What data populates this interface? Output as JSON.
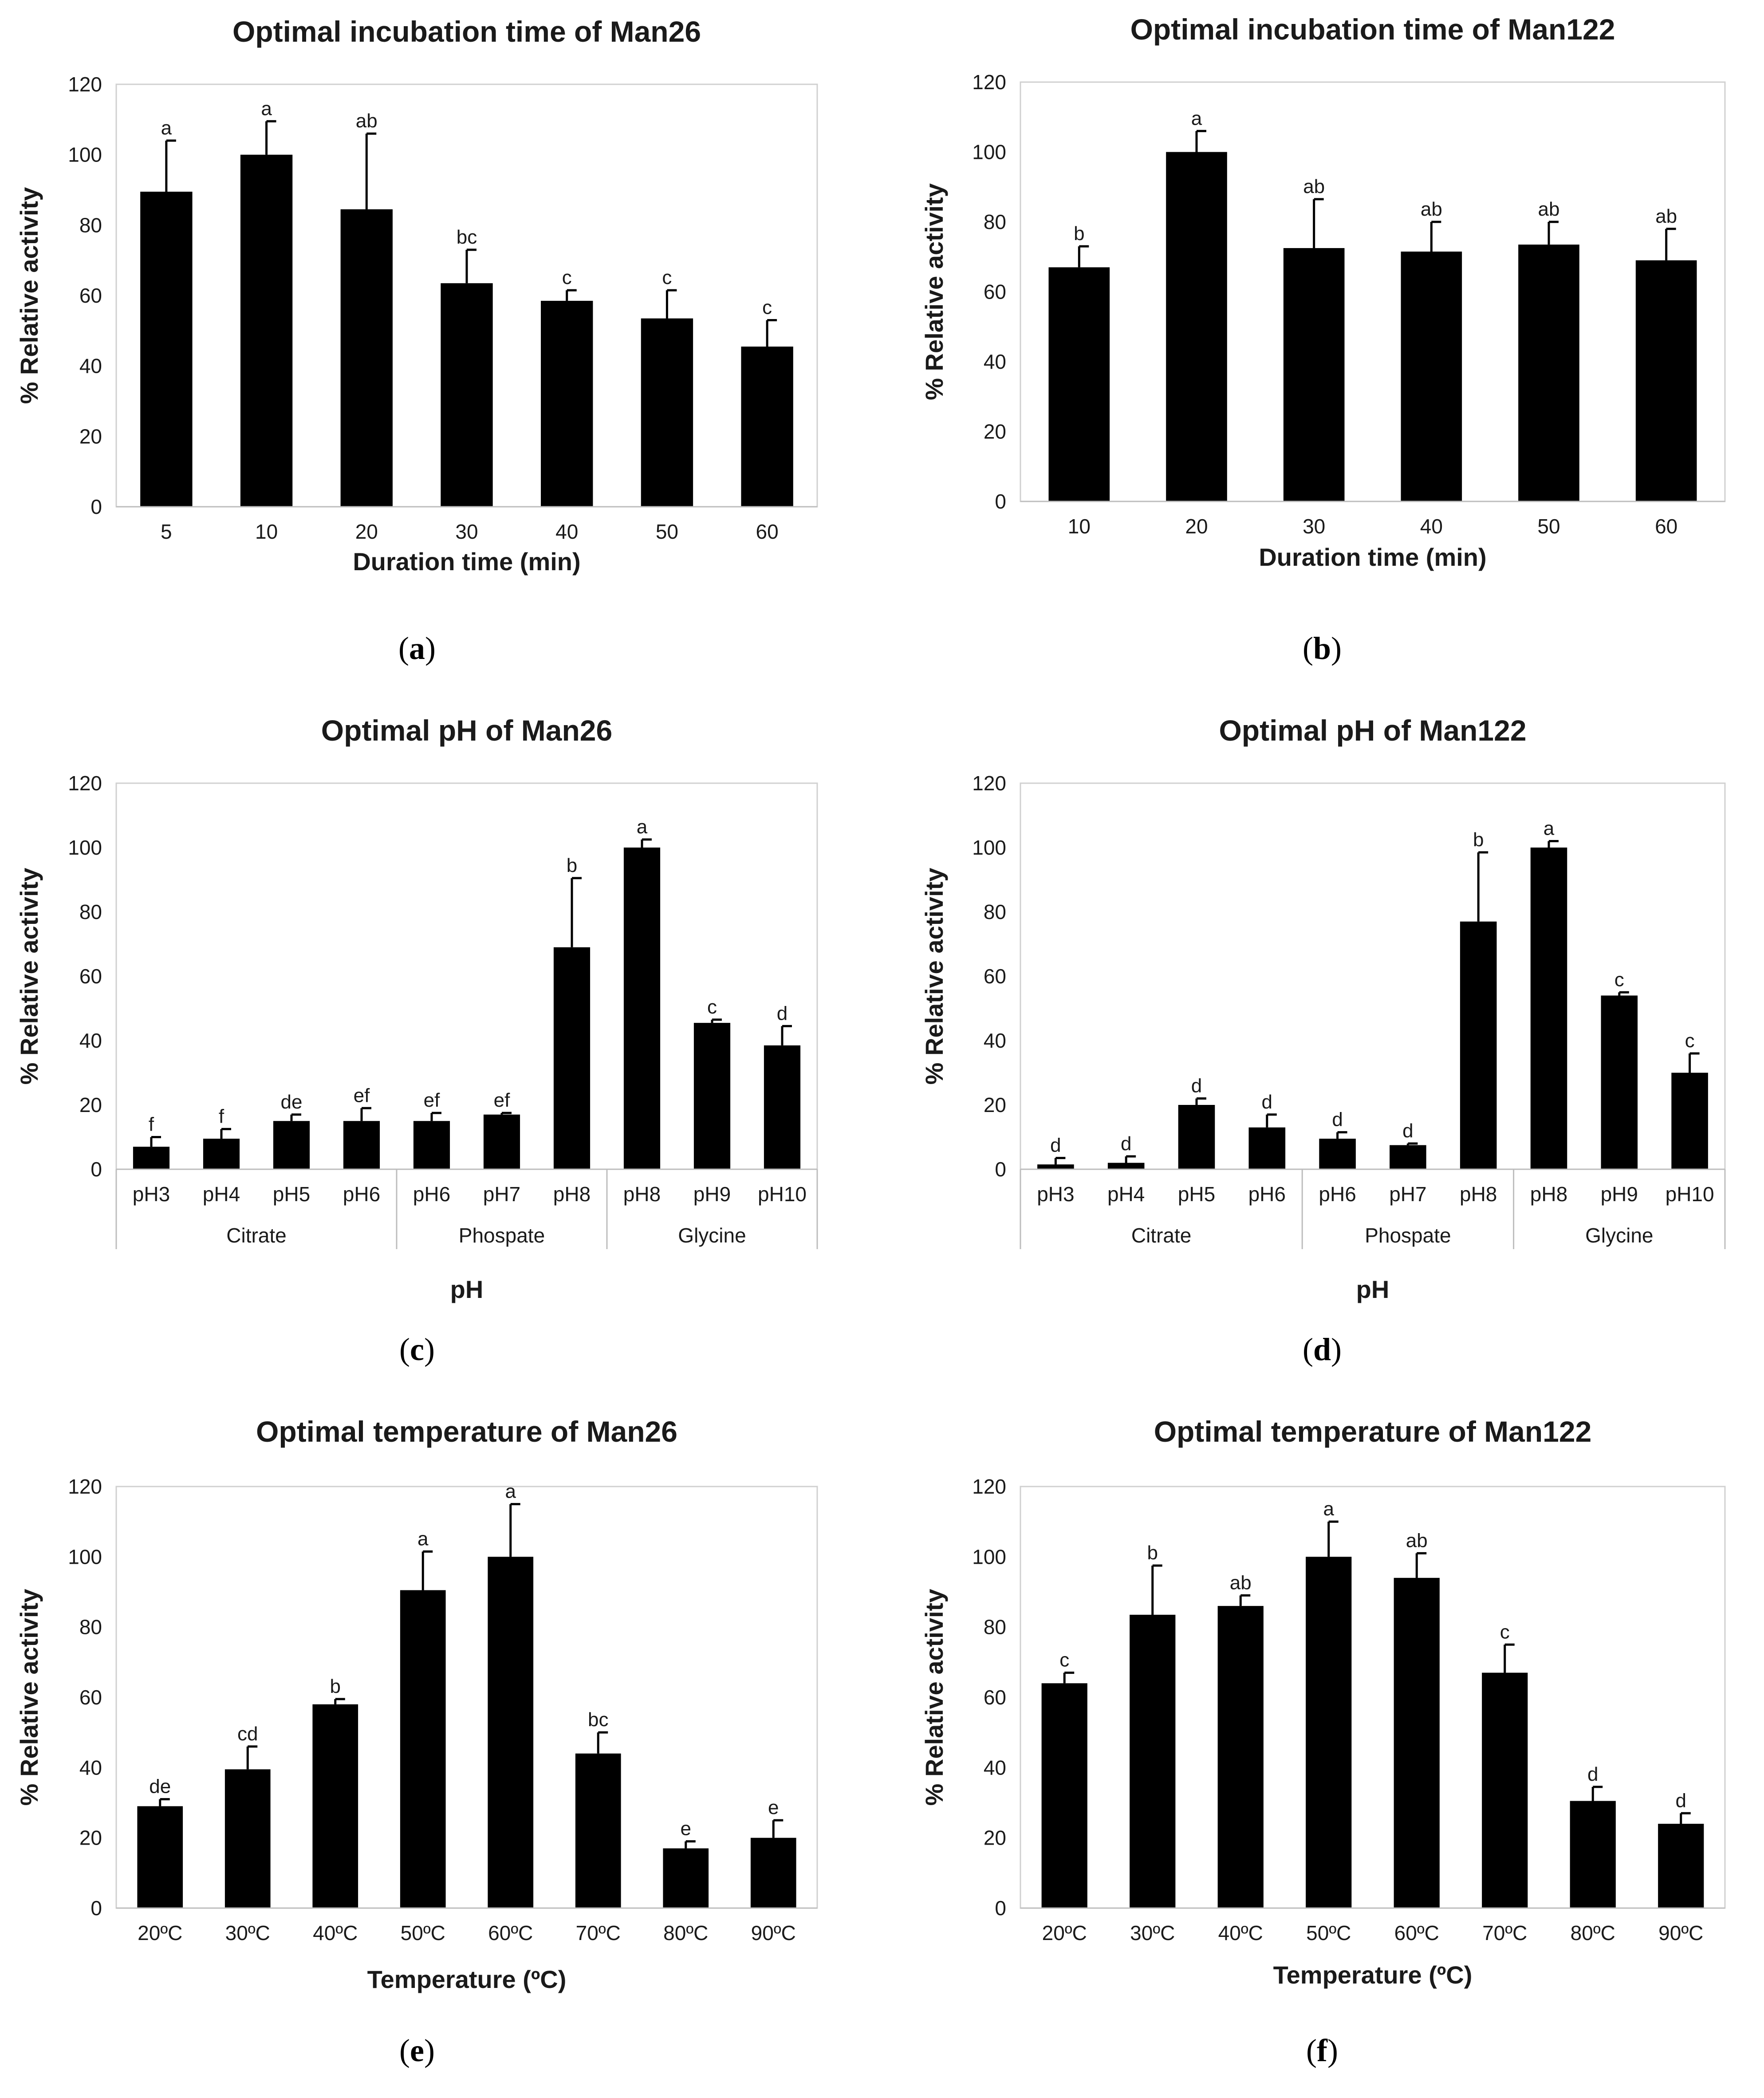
{
  "chart_data": [
    {
      "id": "a",
      "type": "bar",
      "panel_label": "a",
      "title": "Optimal incubation time of Man26",
      "xlabel": "Duration time (min)",
      "ylabel": "% Relative activity",
      "ylim": [
        0,
        120
      ],
      "yticks": [
        0,
        20,
        40,
        60,
        80,
        100,
        120
      ],
      "categories": [
        "5",
        "10",
        "20",
        "30",
        "40",
        "50",
        "60"
      ],
      "values": [
        89.5,
        100,
        84.5,
        63.5,
        58.5,
        53.5,
        45.5
      ],
      "errors": [
        14.5,
        9.5,
        21.5,
        9.5,
        3,
        8,
        7.5
      ],
      "labels": [
        "a",
        "a",
        "ab",
        "bc",
        "c",
        "c",
        "c"
      ],
      "groups": []
    },
    {
      "id": "b",
      "type": "bar",
      "panel_label": "b",
      "title": "Optimal incubation time of Man122",
      "xlabel": "Duration time (min)",
      "ylabel": "% Relative activity",
      "ylim": [
        0,
        120
      ],
      "yticks": [
        0,
        20,
        40,
        60,
        80,
        100,
        120
      ],
      "categories": [
        "10",
        "20",
        "30",
        "40",
        "50",
        "60"
      ],
      "values": [
        67,
        100,
        72.5,
        71.5,
        73.5,
        69
      ],
      "errors": [
        6,
        6,
        14,
        8.5,
        6.5,
        9
      ],
      "labels": [
        "b",
        "a",
        "ab",
        "ab",
        "ab",
        "ab"
      ],
      "groups": []
    },
    {
      "id": "c",
      "type": "bar",
      "panel_label": "c",
      "title": "Optimal pH of Man26",
      "xlabel": "pH",
      "ylabel": "% Relative activity",
      "ylim": [
        0,
        120
      ],
      "yticks": [
        0,
        20,
        40,
        60,
        80,
        100,
        120
      ],
      "categories": [
        "pH3",
        "pH4",
        "pH5",
        "pH6",
        "pH6",
        "pH7",
        "pH8",
        "pH8",
        "pH9",
        "pH10"
      ],
      "values": [
        7,
        9.5,
        15,
        15,
        15,
        17,
        69,
        100,
        45.5,
        38.5
      ],
      "errors": [
        3,
        3,
        2,
        4,
        2.5,
        0.5,
        21.5,
        2.5,
        1,
        6
      ],
      "labels": [
        "f",
        "f",
        "de",
        "ef",
        "ef",
        "ef",
        "b",
        "a",
        "c",
        "d"
      ],
      "groups": [
        {
          "name": "Citrate",
          "count": 4
        },
        {
          "name": "Phospate",
          "count": 3
        },
        {
          "name": "Glycine",
          "count": 3
        }
      ]
    },
    {
      "id": "d",
      "type": "bar",
      "panel_label": "d",
      "title": "Optimal pH of Man122",
      "xlabel": "pH",
      "ylabel": "% Relative activity",
      "ylim": [
        0,
        120
      ],
      "yticks": [
        0,
        20,
        40,
        60,
        80,
        100,
        120
      ],
      "categories": [
        "pH3",
        "pH4",
        "pH5",
        "pH6",
        "pH6",
        "pH7",
        "pH8",
        "pH8",
        "pH9",
        "pH10"
      ],
      "values": [
        1.5,
        2,
        20,
        13,
        9.5,
        7.5,
        77,
        100,
        54,
        30
      ],
      "errors": [
        2,
        2,
        2,
        4,
        2,
        0.5,
        21.5,
        2,
        1,
        6
      ],
      "labels": [
        "d",
        "d",
        "d",
        "d",
        "d",
        "d",
        "b",
        "a",
        "c",
        "c"
      ],
      "groups": [
        {
          "name": "Citrate",
          "count": 4
        },
        {
          "name": "Phospate",
          "count": 3
        },
        {
          "name": "Glycine",
          "count": 3
        }
      ]
    },
    {
      "id": "e",
      "type": "bar",
      "panel_label": "e",
      "title": "Optimal temperature of Man26",
      "xlabel": "Temperature (ºC)",
      "ylabel": "% Relative activity",
      "ylim": [
        0,
        120
      ],
      "yticks": [
        0,
        20,
        40,
        60,
        80,
        100,
        120
      ],
      "categories": [
        "20ºC",
        "30ºC",
        "40ºC",
        "50ºC",
        "60ºC",
        "70ºC",
        "80ºC",
        "90ºC"
      ],
      "values": [
        29,
        39.5,
        58,
        90.5,
        100,
        44,
        17,
        20
      ],
      "errors": [
        2,
        6.5,
        1.5,
        11,
        15,
        6,
        2,
        5
      ],
      "labels": [
        "de",
        "cd",
        "b",
        "a",
        "a",
        "bc",
        "e",
        "e"
      ],
      "groups": []
    },
    {
      "id": "f",
      "type": "bar",
      "panel_label": "f",
      "title": "Optimal temperature of Man122",
      "xlabel": "Temperature (ºC)",
      "ylabel": "% Relative activity",
      "ylim": [
        0,
        120
      ],
      "yticks": [
        0,
        20,
        40,
        60,
        80,
        100,
        120
      ],
      "categories": [
        "20ºC",
        "30ºC",
        "40ºC",
        "50ºC",
        "60ºC",
        "70ºC",
        "80ºC",
        "90ºC"
      ],
      "values": [
        64,
        83.5,
        86,
        100,
        94,
        67,
        30.5,
        24
      ],
      "errors": [
        3,
        14,
        3,
        10,
        7,
        8,
        4,
        3
      ],
      "labels": [
        "c",
        "b",
        "ab",
        "a",
        "ab",
        "c",
        "d",
        "d"
      ],
      "groups": []
    }
  ]
}
